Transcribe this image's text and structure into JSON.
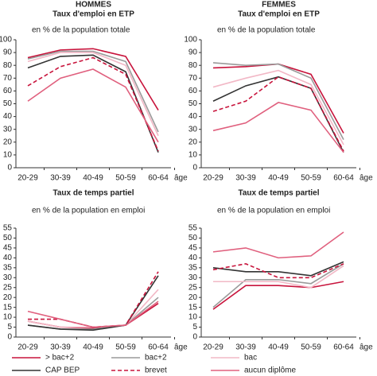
{
  "chart_data": [
    {
      "type": "line",
      "heading": "HOMMES",
      "title": "Taux d'emploi en ETP",
      "ylabel": "en % de la population totale",
      "xlabel": "âge",
      "categories": [
        "20-29",
        "30-39",
        "40-49",
        "50-59",
        "60-64"
      ],
      "ylim": [
        0,
        100
      ],
      "yticks": [
        0,
        10,
        20,
        30,
        40,
        50,
        60,
        70,
        80,
        90,
        100
      ],
      "series": [
        {
          "name": "> bac+2",
          "color": "#c8143c",
          "dash": false,
          "values": [
            86,
            92,
            93,
            87,
            45
          ]
        },
        {
          "name": "bac+2",
          "color": "#9a9a9a",
          "dash": false,
          "values": [
            85,
            91,
            91,
            83,
            28
          ]
        },
        {
          "name": "bac",
          "color": "#f2b8c6",
          "dash": false,
          "values": [
            83,
            90,
            90,
            80,
            25
          ]
        },
        {
          "name": "CAP BEP",
          "color": "#333333",
          "dash": false,
          "values": [
            78,
            87,
            88,
            75,
            12
          ]
        },
        {
          "name": "brevet",
          "color": "#c8143c",
          "dash": true,
          "values": [
            64,
            79,
            86,
            73,
            13
          ]
        },
        {
          "name": "aucun diplôme",
          "color": "#e0607e",
          "dash": false,
          "values": [
            52,
            70,
            77,
            63,
            20
          ]
        }
      ]
    },
    {
      "type": "line",
      "heading": "FEMMES",
      "title": "Taux d'emploi en ETP",
      "ylabel": "en % de la population totale",
      "xlabel": "âge",
      "categories": [
        "20-29",
        "30-39",
        "40-49",
        "50-59",
        "60-64"
      ],
      "ylim": [
        0,
        100
      ],
      "yticks": [
        0,
        10,
        20,
        30,
        40,
        50,
        60,
        70,
        80,
        90,
        100
      ],
      "series": [
        {
          "name": "> bac+2",
          "color": "#c8143c",
          "dash": false,
          "values": [
            78,
            79,
            81,
            73,
            27
          ]
        },
        {
          "name": "bac+2",
          "color": "#9a9a9a",
          "dash": false,
          "values": [
            82,
            80,
            81,
            70,
            22
          ]
        },
        {
          "name": "bac",
          "color": "#f2b8c6",
          "dash": false,
          "values": [
            63,
            70,
            76,
            65,
            18
          ]
        },
        {
          "name": "CAP BEP",
          "color": "#333333",
          "dash": false,
          "values": [
            52,
            64,
            71,
            62,
            12
          ]
        },
        {
          "name": "brevet",
          "color": "#c8143c",
          "dash": true,
          "values": [
            44,
            52,
            71,
            62,
            13
          ]
        },
        {
          "name": "aucun diplôme",
          "color": "#e0607e",
          "dash": false,
          "values": [
            29,
            35,
            51,
            45,
            12
          ]
        }
      ]
    },
    {
      "type": "line",
      "title": "Taux de temps partiel",
      "ylabel": "en % de la population en emploi",
      "xlabel": "âge",
      "categories": [
        "20-29",
        "30-39",
        "40-49",
        "50-59",
        "60-64"
      ],
      "ylim": [
        0,
        55
      ],
      "yticks": [
        0,
        5,
        10,
        15,
        20,
        25,
        30,
        35,
        40,
        45,
        50,
        55
      ],
      "series": [
        {
          "name": "> bac+2",
          "color": "#c8143c",
          "dash": false,
          "values": [
            8,
            5,
            4.5,
            6,
            17
          ]
        },
        {
          "name": "bac+2",
          "color": "#9a9a9a",
          "dash": false,
          "values": [
            6,
            4,
            4,
            6,
            20
          ]
        },
        {
          "name": "bac",
          "color": "#f2b8c6",
          "dash": false,
          "values": [
            8,
            5,
            5,
            6,
            24
          ]
        },
        {
          "name": "CAP BEP",
          "color": "#333333",
          "dash": false,
          "values": [
            6,
            4,
            3.5,
            6,
            31
          ]
        },
        {
          "name": "brevet",
          "color": "#c8143c",
          "dash": true,
          "values": [
            9,
            9,
            5,
            6,
            33
          ]
        },
        {
          "name": "aucun diplôme",
          "color": "#e0607e",
          "dash": false,
          "values": [
            13,
            9,
            5,
            6,
            18
          ]
        }
      ]
    },
    {
      "type": "line",
      "title": "Taux de temps partiel",
      "ylabel": "en % de la population en emploi",
      "xlabel": "âge",
      "categories": [
        "20-29",
        "30-39",
        "40-49",
        "50-59",
        "60-64"
      ],
      "ylim": [
        0,
        55
      ],
      "yticks": [
        0,
        5,
        10,
        15,
        20,
        25,
        30,
        35,
        40,
        45,
        50,
        55
      ],
      "series": [
        {
          "name": "> bac+2",
          "color": "#c8143c",
          "dash": false,
          "values": [
            14,
            26,
            26,
            25,
            28
          ]
        },
        {
          "name": "bac+2",
          "color": "#9a9a9a",
          "dash": false,
          "values": [
            15,
            29,
            29,
            27,
            37
          ]
        },
        {
          "name": "bac",
          "color": "#f2b8c6",
          "dash": false,
          "values": [
            28,
            28,
            28,
            25,
            36
          ]
        },
        {
          "name": "CAP BEP",
          "color": "#333333",
          "dash": false,
          "values": [
            35,
            33,
            33,
            31,
            38
          ]
        },
        {
          "name": "brevet",
          "color": "#c8143c",
          "dash": true,
          "values": [
            34,
            37,
            30,
            30,
            37
          ]
        },
        {
          "name": "aucun diplôme",
          "color": "#e0607e",
          "dash": false,
          "values": [
            43,
            45,
            40,
            41,
            53
          ]
        }
      ]
    }
  ]
}
